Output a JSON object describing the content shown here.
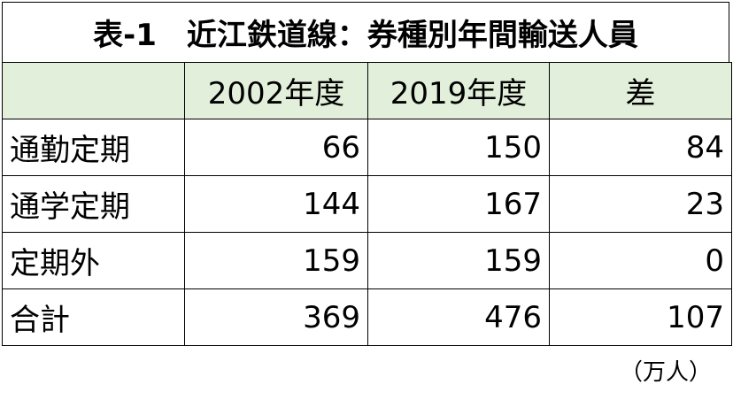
{
  "title": "表-1　近江鉄道線：券種別年間輸送人員",
  "table": {
    "header": [
      "2002年度",
      "2019年度",
      "差"
    ],
    "rows": [
      [
        "通勤定期",
        66,
        150,
        84
      ],
      [
        "通学定期",
        144,
        167,
        23
      ],
      [
        "定期外",
        159,
        159,
        0
      ],
      [
        "合計",
        369,
        476,
        107
      ]
    ]
  },
  "unit": "（万人）"
}
